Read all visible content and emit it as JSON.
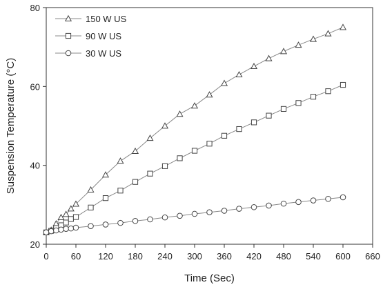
{
  "chart_data": {
    "type": "line",
    "xlabel": "Time (Sec)",
    "ylabel": "Suspension Temperature (°C)",
    "xlim": [
      0,
      660
    ],
    "ylim": [
      20,
      80
    ],
    "x_ticks": [
      0,
      60,
      120,
      180,
      240,
      300,
      360,
      420,
      480,
      540,
      600,
      660
    ],
    "y_ticks": [
      20,
      40,
      60,
      80
    ],
    "grid": false,
    "legend_position": "top-left",
    "line_color": "#888888",
    "marker_color": "#444444",
    "series": [
      {
        "name": "150 W US",
        "marker": "triangle",
        "points": [
          [
            0,
            23.0
          ],
          [
            10,
            23.6
          ],
          [
            20,
            25.2
          ],
          [
            30,
            26.8
          ],
          [
            40,
            27.6
          ],
          [
            50,
            29.0
          ],
          [
            60,
            30.2
          ],
          [
            90,
            33.8
          ],
          [
            120,
            37.6
          ],
          [
            150,
            41.1
          ],
          [
            180,
            43.6
          ],
          [
            210,
            46.9
          ],
          [
            240,
            50.0
          ],
          [
            270,
            53.0
          ],
          [
            300,
            55.1
          ],
          [
            330,
            57.9
          ],
          [
            360,
            60.8
          ],
          [
            390,
            63.0
          ],
          [
            420,
            65.1
          ],
          [
            450,
            67.1
          ],
          [
            480,
            68.9
          ],
          [
            510,
            70.5
          ],
          [
            540,
            72.0
          ],
          [
            570,
            73.4
          ],
          [
            600,
            75.0
          ]
        ]
      },
      {
        "name": "90 W US",
        "marker": "square",
        "points": [
          [
            0,
            23.0
          ],
          [
            10,
            23.4
          ],
          [
            20,
            24.1
          ],
          [
            30,
            24.8
          ],
          [
            40,
            25.5
          ],
          [
            50,
            26.4
          ],
          [
            60,
            26.9
          ],
          [
            90,
            29.3
          ],
          [
            120,
            31.7
          ],
          [
            150,
            33.6
          ],
          [
            180,
            35.8
          ],
          [
            210,
            37.9
          ],
          [
            240,
            39.8
          ],
          [
            270,
            41.8
          ],
          [
            300,
            43.7
          ],
          [
            330,
            45.5
          ],
          [
            360,
            47.5
          ],
          [
            390,
            49.2
          ],
          [
            420,
            50.9
          ],
          [
            450,
            52.6
          ],
          [
            480,
            54.3
          ],
          [
            510,
            55.8
          ],
          [
            540,
            57.4
          ],
          [
            570,
            58.8
          ],
          [
            600,
            60.4
          ]
        ]
      },
      {
        "name": "30 W US",
        "marker": "circle",
        "points": [
          [
            0,
            23.0
          ],
          [
            10,
            23.3
          ],
          [
            20,
            23.5
          ],
          [
            30,
            23.7
          ],
          [
            40,
            23.9
          ],
          [
            50,
            24.0
          ],
          [
            60,
            24.2
          ],
          [
            90,
            24.6
          ],
          [
            120,
            25.0
          ],
          [
            150,
            25.4
          ],
          [
            180,
            25.9
          ],
          [
            210,
            26.3
          ],
          [
            240,
            26.8
          ],
          [
            270,
            27.2
          ],
          [
            300,
            27.7
          ],
          [
            330,
            28.1
          ],
          [
            360,
            28.5
          ],
          [
            390,
            29.0
          ],
          [
            420,
            29.4
          ],
          [
            450,
            29.8
          ],
          [
            480,
            30.3
          ],
          [
            510,
            30.7
          ],
          [
            540,
            31.1
          ],
          [
            570,
            31.5
          ],
          [
            600,
            31.9
          ]
        ]
      }
    ]
  }
}
